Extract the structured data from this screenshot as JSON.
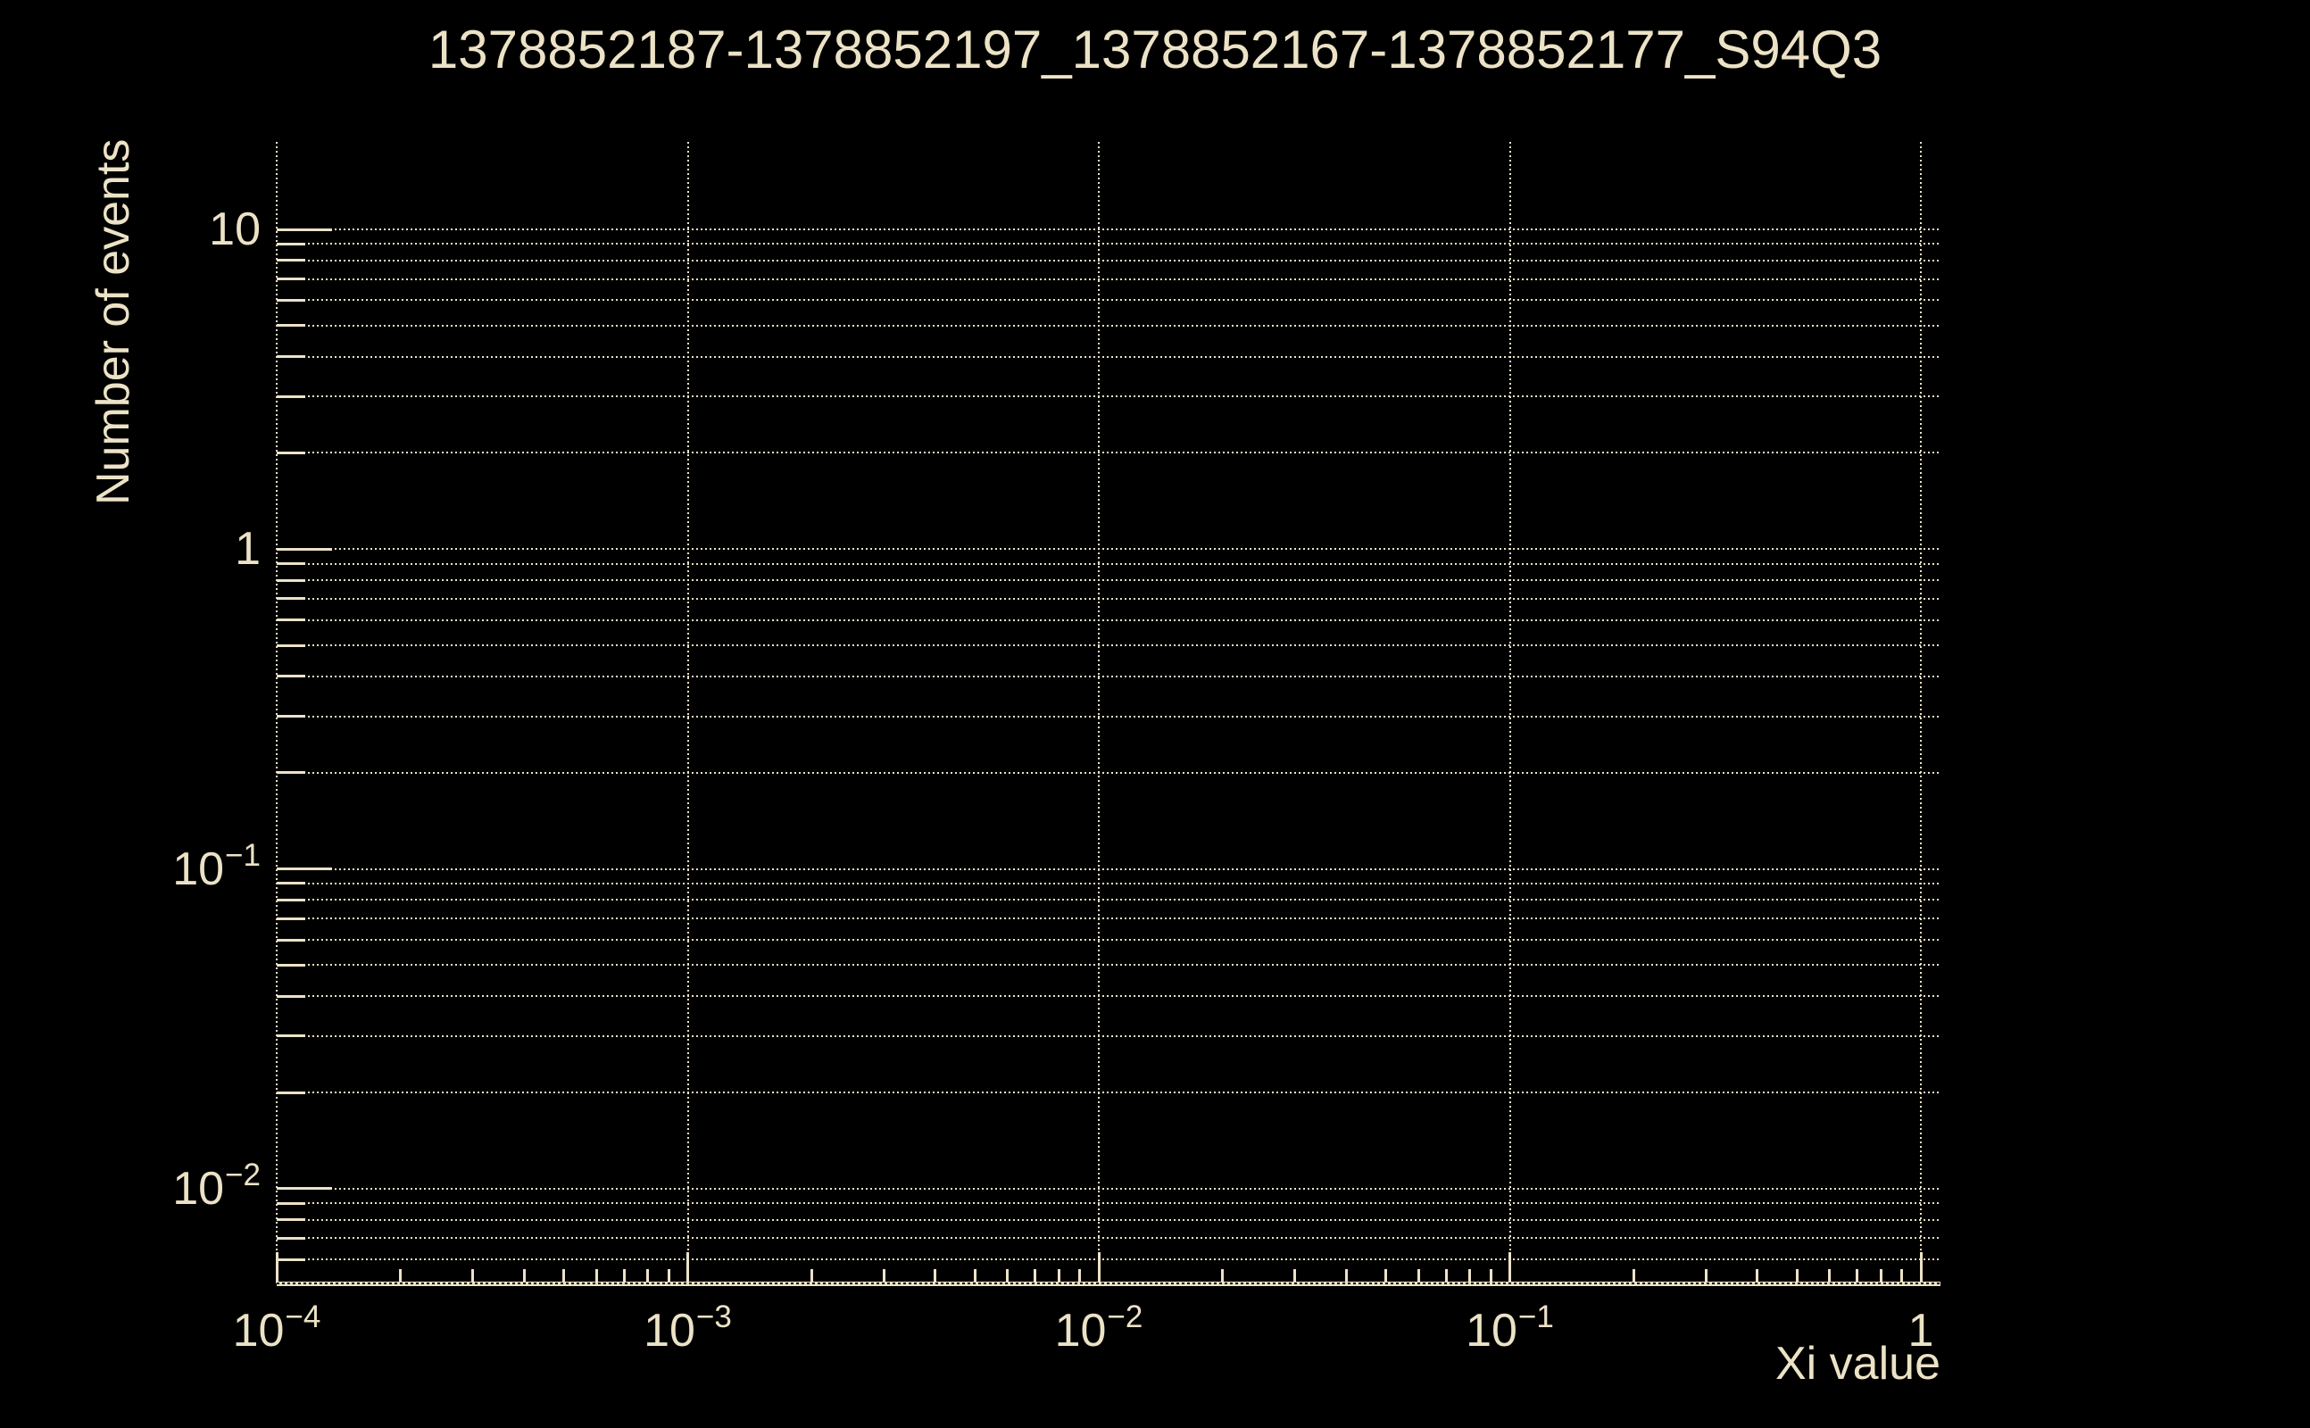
{
  "window": {
    "background_color": "#000000",
    "foreground_color": "#ece2c6"
  },
  "chart_data": {
    "type": "line",
    "title": "1378852187-1378852197_1378852167-1378852177_S94Q3",
    "xlabel": "Xi value",
    "ylabel": "Number of events",
    "x_scale": "log",
    "y_scale": "log",
    "xlim": [
      0.0001,
      1.1
    ],
    "ylim": [
      0.005,
      18.8
    ],
    "grid": {
      "style": "dotted",
      "horizontal_lines": "every logarithmic subdivision (1-9 per decade) from 0.005 to 10",
      "vertical_lines": "decade positions only"
    },
    "x_major_ticks": [
      {
        "base": "10",
        "exp": "−4",
        "value": 0.0001
      },
      {
        "base": "10",
        "exp": "−3",
        "value": 0.001
      },
      {
        "base": "10",
        "exp": "−2",
        "value": 0.01
      },
      {
        "base": "10",
        "exp": "−1",
        "value": 0.1
      },
      {
        "base": "1",
        "exp": "",
        "value": 1
      }
    ],
    "y_major_ticks": [
      {
        "base": "10",
        "exp": "",
        "value": 10
      },
      {
        "base": "1",
        "exp": "",
        "value": 1
      },
      {
        "base": "10",
        "exp": "−1",
        "value": 0.1
      },
      {
        "base": "10",
        "exp": "−2",
        "value": 0.01
      }
    ],
    "minor_tick_multiples": [
      2,
      3,
      4,
      5,
      6,
      7,
      8,
      9
    ],
    "series": [],
    "legend": null,
    "annotations": []
  }
}
